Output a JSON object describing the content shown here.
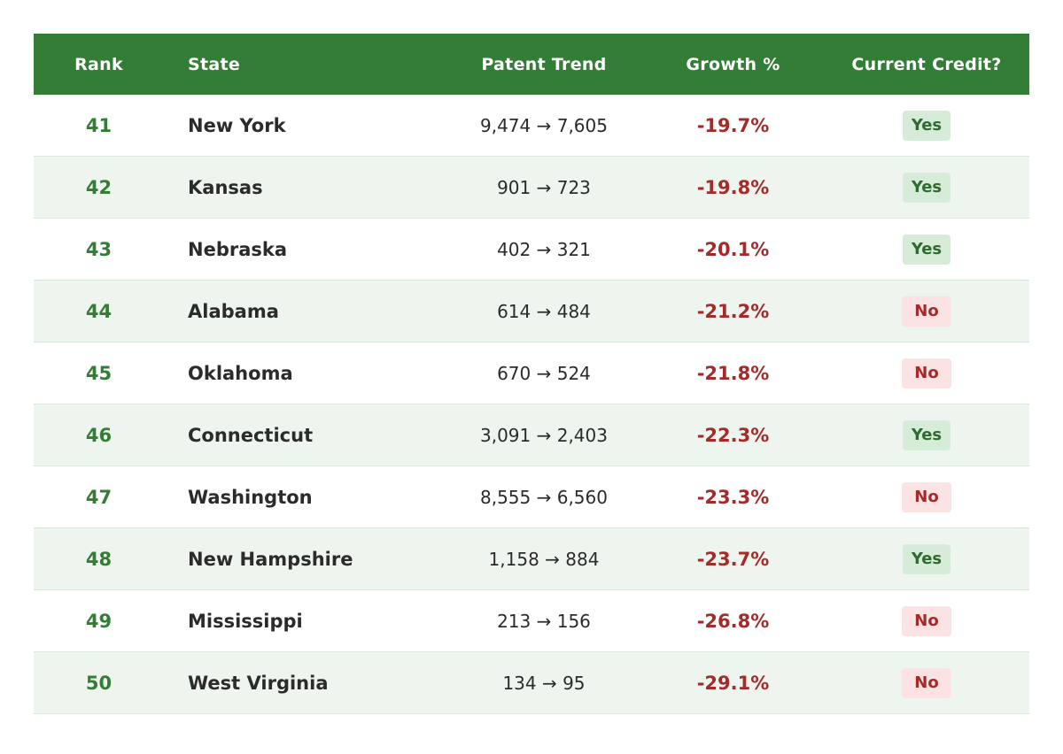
{
  "header": {
    "rank": "Rank",
    "state": "State",
    "trend": "Patent Trend",
    "growth": "Growth %",
    "credit": "Current Credit?"
  },
  "rows": [
    {
      "rank": "41",
      "state": "New York",
      "trend": "9,474 → 7,605",
      "growth": "-19.7%",
      "credit": "Yes"
    },
    {
      "rank": "42",
      "state": "Kansas",
      "trend": "901 → 723",
      "growth": "-19.8%",
      "credit": "Yes"
    },
    {
      "rank": "43",
      "state": "Nebraska",
      "trend": "402 → 321",
      "growth": "-20.1%",
      "credit": "Yes"
    },
    {
      "rank": "44",
      "state": "Alabama",
      "trend": "614 → 484",
      "growth": "-21.2%",
      "credit": "No"
    },
    {
      "rank": "45",
      "state": "Oklahoma",
      "trend": "670 → 524",
      "growth": "-21.8%",
      "credit": "No"
    },
    {
      "rank": "46",
      "state": "Connecticut",
      "trend": "3,091 → 2,403",
      "growth": "-22.3%",
      "credit": "Yes"
    },
    {
      "rank": "47",
      "state": "Washington",
      "trend": "8,555 → 6,560",
      "growth": "-23.3%",
      "credit": "No"
    },
    {
      "rank": "48",
      "state": "New Hampshire",
      "trend": "1,158 → 884",
      "growth": "-23.7%",
      "credit": "Yes"
    },
    {
      "rank": "49",
      "state": "Mississippi",
      "trend": "213 → 156",
      "growth": "-26.8%",
      "credit": "No"
    },
    {
      "rank": "50",
      "state": "West Virginia",
      "trend": "134 → 95",
      "growth": "-29.1%",
      "credit": "No"
    }
  ],
  "colors": {
    "header_bg": "#347d36",
    "rank_text": "#347d36",
    "negative_growth": "#a52a2a",
    "alt_row_bg": "#eef5ef",
    "yes_badge_bg": "#d6ecd9",
    "no_badge_bg": "#fbe3e3"
  }
}
